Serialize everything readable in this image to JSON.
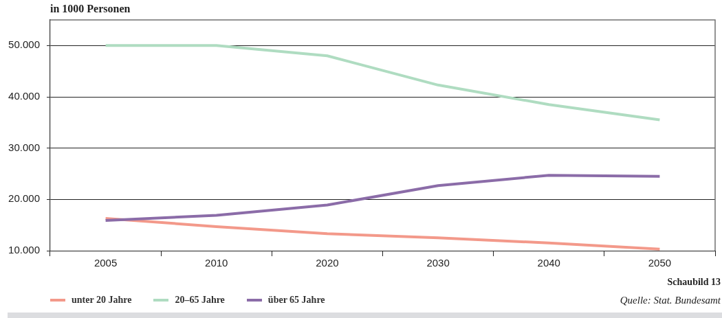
{
  "chart_data": {
    "type": "line",
    "ylabel": "in 1000 Personen",
    "annotations": [
      "Schaubild 13",
      "Quelle: Stat. Bundesamt"
    ],
    "categories": [
      "2005",
      "2010",
      "2020",
      "2030",
      "2040",
      "2050"
    ],
    "series": [
      {
        "name": "unter 20 Jahre",
        "color": "#f3998a",
        "values": [
          16300,
          14700,
          13300,
          12500,
          11500,
          10300
        ]
      },
      {
        "name": "20–65 Jahre",
        "color": "#afdcc1",
        "values": [
          50000,
          50000,
          48000,
          42300,
          38500,
          35500
        ]
      },
      {
        "name": "über 65 Jahre",
        "color": "#8b6ca8",
        "values": [
          15900,
          16900,
          18900,
          22700,
          24700,
          24500
        ]
      }
    ],
    "ylim": [
      10000,
      55000
    ],
    "yticks": [
      {
        "value": 10000,
        "label": "10.000"
      },
      {
        "value": 20000,
        "label": "20.000"
      },
      {
        "value": 30000,
        "label": "30.000"
      },
      {
        "value": 40000,
        "label": "40.000"
      },
      {
        "value": 50000,
        "label": "50.000"
      }
    ],
    "grid": "y",
    "legend": "bottom left",
    "marker": "none",
    "line_style": "solid"
  }
}
